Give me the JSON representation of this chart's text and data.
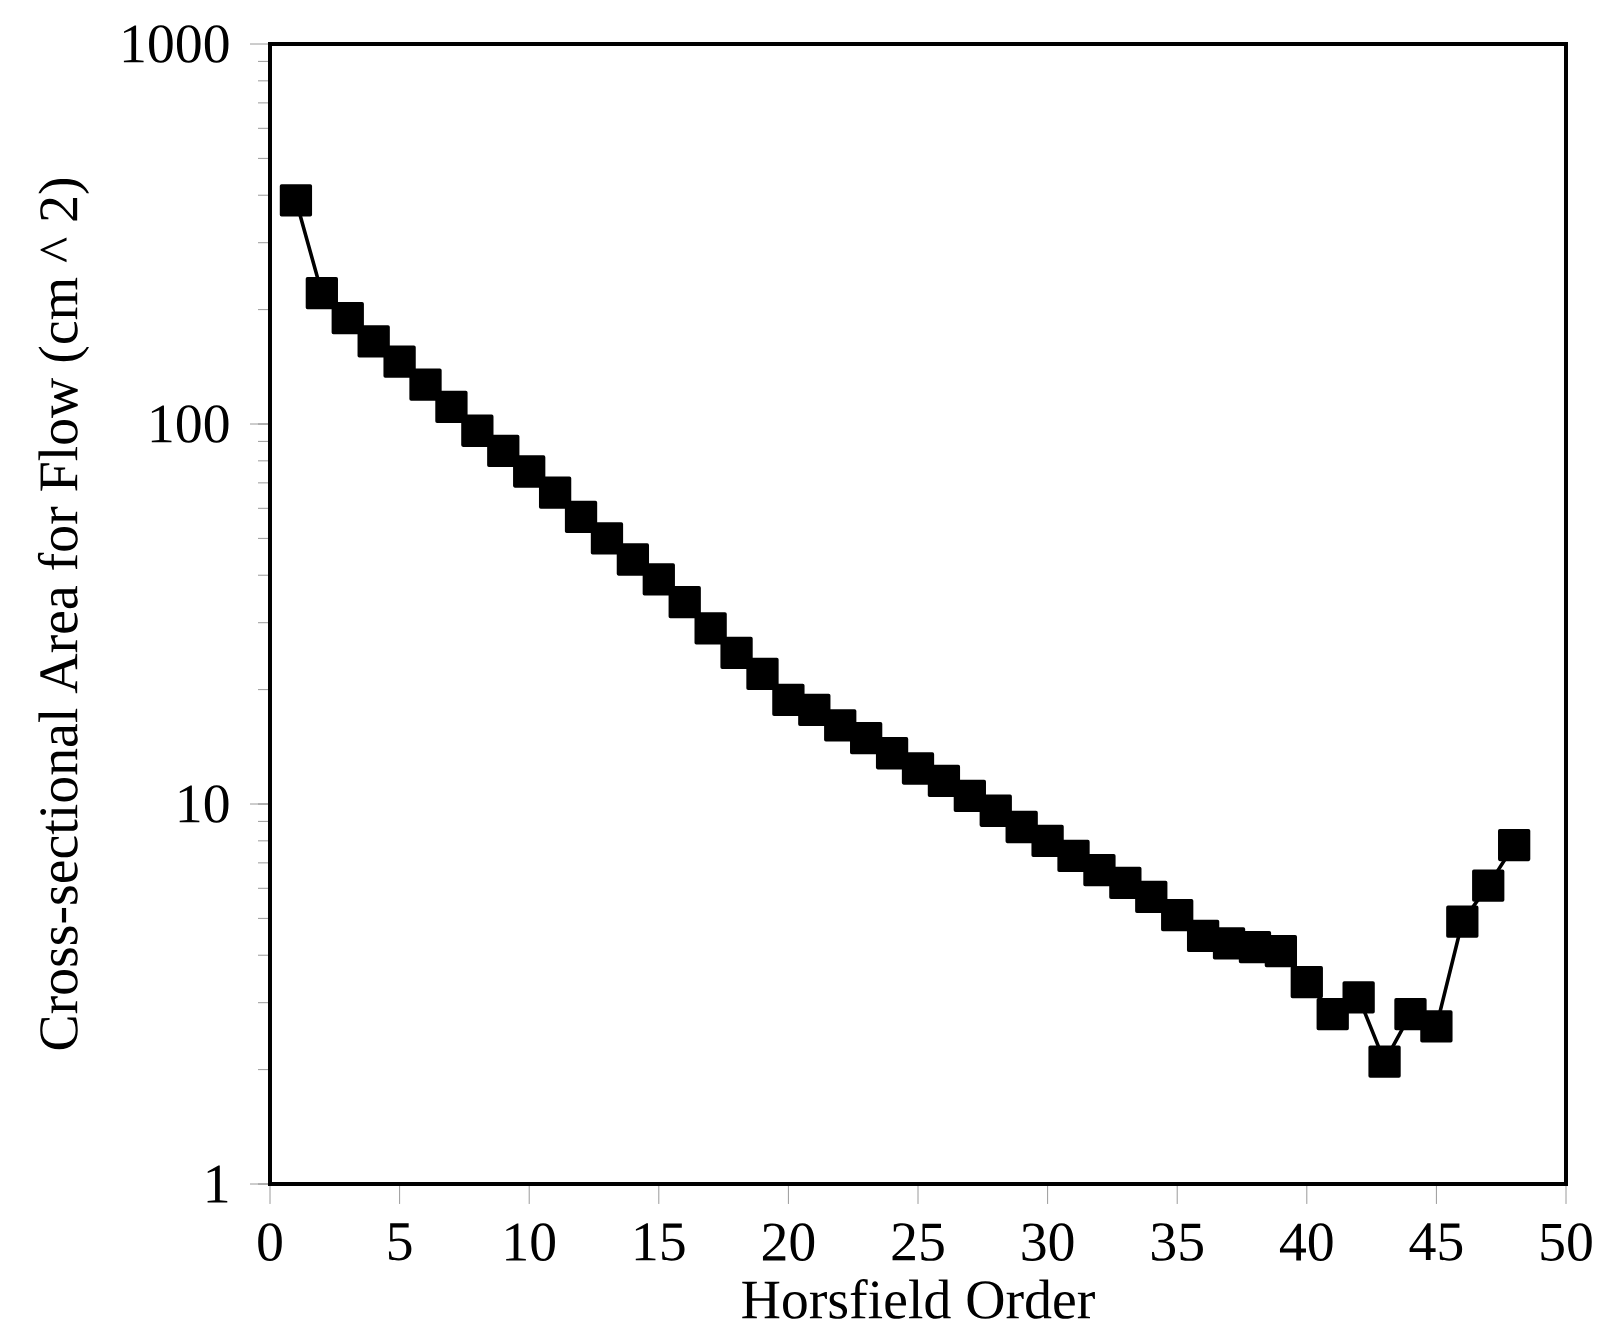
{
  "chart_data": {
    "type": "line",
    "xlabel": "Horsfield Order",
    "ylabel": "Cross-sectional Area for Flow (cm ^ 2)",
    "x": [
      1,
      2,
      3,
      4,
      5,
      6,
      7,
      8,
      9,
      10,
      11,
      12,
      13,
      14,
      15,
      16,
      17,
      18,
      19,
      20,
      21,
      22,
      23,
      24,
      25,
      26,
      27,
      28,
      29,
      30,
      31,
      32,
      33,
      34,
      35,
      36,
      37,
      38,
      39,
      40,
      41,
      42,
      43,
      44,
      45,
      46,
      47,
      48
    ],
    "series": [
      {
        "color": "#000000",
        "values": [
          388,
          221,
          190,
          165,
          146,
          127,
          111,
          96,
          85,
          75,
          66,
          57,
          50,
          44,
          39,
          34,
          29,
          25,
          22,
          18.8,
          17.7,
          16.1,
          14.9,
          13.6,
          12.4,
          11.5,
          10.5,
          9.6,
          8.7,
          8.0,
          7.3,
          6.7,
          6.2,
          5.7,
          5.1,
          4.5,
          4.3,
          4.2,
          4.1,
          3.4,
          2.8,
          3.1,
          2.1,
          2.8,
          2.6,
          4.9,
          6.1,
          7.8
        ]
      }
    ],
    "xlim": [
      0,
      50
    ],
    "ylim": [
      1,
      1000
    ],
    "xticks": [
      0,
      5,
      10,
      15,
      20,
      25,
      30,
      35,
      40,
      45,
      50
    ],
    "yticks": [
      1,
      10,
      100,
      1000
    ],
    "log": "y",
    "grid": false,
    "marker": "square",
    "line_style": "solid"
  }
}
